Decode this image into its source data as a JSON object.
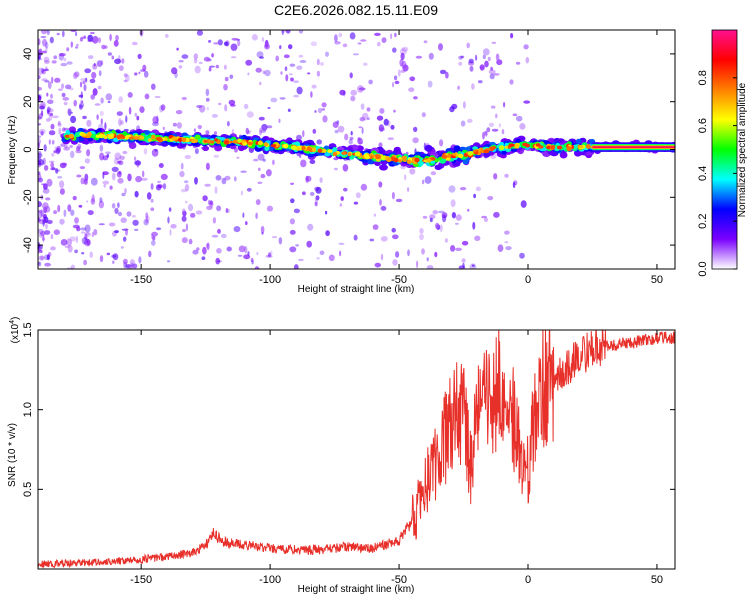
{
  "title": "C2E6.2026.082.15.11.E09",
  "chart_data": [
    {
      "type": "heatmap",
      "xlabel": "Height of straight line (km)",
      "ylabel": "Frequency (Hz)",
      "xlim": [
        -190,
        57
      ],
      "ylim": [
        -50,
        50
      ],
      "x_ticks": [
        -150,
        -100,
        -50,
        0,
        50
      ],
      "y_ticks": [
        -40,
        -20,
        0,
        20,
        40
      ],
      "ridge_center_frequency": {
        "x": [
          -190,
          -170,
          -150,
          -130,
          -110,
          -90,
          -70,
          -50,
          -40,
          -30,
          -20,
          -10,
          0,
          10,
          20,
          57
        ],
        "y": [
          5,
          6,
          5,
          4,
          3,
          1,
          -2,
          -4,
          -5,
          -3,
          -1,
          1,
          2,
          1,
          1,
          1
        ]
      },
      "colorbar": {
        "label": "Normalized spectral amplitude",
        "range": [
          0,
          1
        ],
        "ticks": [
          0.0,
          0.2,
          0.4,
          0.6,
          0.8
        ],
        "colors": [
          "#ffffff",
          "#7a00ff",
          "#0000ff",
          "#00ffff",
          "#00ff00",
          "#ffff00",
          "#ff8000",
          "#ff0000",
          "#ff1090"
        ]
      }
    },
    {
      "type": "line",
      "xlabel": "Height of straight line (km)",
      "ylabel": "SNR (10 * v/v)",
      "y_multiplier": "(x10",
      "y_multiplier_exp": "4",
      "y_multiplier_close": ")",
      "xlim": [
        -190,
        57
      ],
      "ylim": [
        0,
        1.5
      ],
      "x_ticks": [
        -150,
        -100,
        -50,
        0,
        50
      ],
      "y_ticks": [
        0.5,
        1.0,
        1.5
      ],
      "y_tick_labels": [
        "0.5",
        "1.0",
        "1.5"
      ],
      "series": [
        {
          "name": "SNR",
          "color": "#e8302a",
          "x": [
            -190,
            -170,
            -150,
            -140,
            -130,
            -125,
            -122,
            -118,
            -110,
            -100,
            -90,
            -80,
            -70,
            -60,
            -50,
            -45,
            -40,
            -35,
            -30,
            -27,
            -25,
            -22,
            -20,
            -15,
            -10,
            -8,
            -5,
            -3,
            -1,
            0,
            3,
            5,
            10,
            15,
            20,
            30,
            40,
            50,
            57
          ],
          "y": [
            0.03,
            0.04,
            0.06,
            0.08,
            0.1,
            0.15,
            0.22,
            0.17,
            0.15,
            0.13,
            0.12,
            0.12,
            0.14,
            0.13,
            0.18,
            0.3,
            0.5,
            0.7,
            0.9,
            1.0,
            0.95,
            0.6,
            0.95,
            1.05,
            1.2,
            1.1,
            0.9,
            0.7,
            0.55,
            0.65,
            1.0,
            1.15,
            1.2,
            1.25,
            1.35,
            1.4,
            1.42,
            1.45,
            1.45
          ]
        }
      ]
    }
  ]
}
